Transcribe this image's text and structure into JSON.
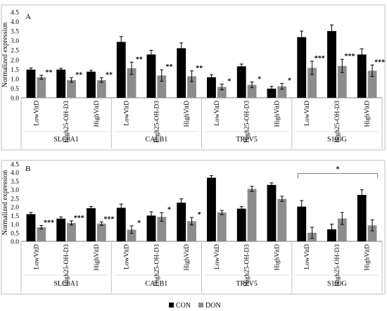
{
  "legend": {
    "entries": [
      {
        "name": "CON",
        "color": "#000000"
      },
      {
        "name": "DON",
        "color": "#8c8c8c"
      }
    ],
    "position": "bottom-center"
  },
  "chart_data": [
    {
      "type": "bar",
      "panel_label": "A",
      "ylabel": "Normalized expression",
      "ylim": [
        0,
        4.5
      ],
      "yticks": [
        "0.0",
        "0.5",
        "1.0",
        "1.5",
        "2.0",
        "2.5",
        "3.0",
        "3.5",
        "4.0",
        "4.5"
      ],
      "grid": false,
      "groups": [
        "SLC8A1",
        "CALB1",
        "TRPV5",
        "S100G"
      ],
      "categories": [
        "LowVitD",
        "High25-OH-D3",
        "HighVitD"
      ],
      "series": [
        {
          "name": "CON",
          "values": [
            [
              1.48,
              1.48,
              1.37
            ],
            [
              2.93,
              2.27,
              2.6
            ],
            [
              1.08,
              1.65,
              0.48
            ],
            [
              3.18,
              3.5,
              2.27
            ]
          ],
          "errors": [
            [
              0.08,
              0.07,
              0.07
            ],
            [
              0.28,
              0.22,
              0.28
            ],
            [
              0.13,
              0.12,
              0.12
            ],
            [
              0.32,
              0.32,
              0.3
            ]
          ]
        },
        {
          "name": "DON",
          "values": [
            [
              1.08,
              0.93,
              0.93
            ],
            [
              1.55,
              1.17,
              1.13
            ],
            [
              0.57,
              0.68,
              0.6
            ],
            [
              1.57,
              1.67,
              1.42
            ]
          ],
          "errors": [
            [
              0.1,
              0.12,
              0.12
            ],
            [
              0.32,
              0.3,
              0.28
            ],
            [
              0.15,
              0.15,
              0.15
            ],
            [
              0.35,
              0.35,
              0.3
            ]
          ]
        }
      ],
      "annotations": [
        [
          "**",
          "**",
          "**"
        ],
        [
          "**",
          "**",
          "**"
        ],
        [
          "*",
          "*",
          "*"
        ],
        [
          "***",
          "***",
          "***"
        ]
      ]
    },
    {
      "type": "bar",
      "panel_label": "B",
      "ylabel": "Normalized expression",
      "ylim": [
        0,
        4.5
      ],
      "yticks": [
        "0.0",
        "0.5",
        "1.0",
        "1.5",
        "2.0",
        "2.5",
        "3.0",
        "3.5",
        "4.0",
        "4.5"
      ],
      "grid": false,
      "groups": [
        "SLC8A1",
        "CALB1",
        "TRPV5",
        "S100G"
      ],
      "categories": [
        "LowVitD",
        "High25-OH-D3",
        "HighVitD"
      ],
      "series": [
        {
          "name": "CON",
          "values": [
            [
              1.58,
              1.32,
              1.93
            ],
            [
              1.95,
              1.5,
              2.25
            ],
            [
              3.7,
              1.9,
              3.28
            ],
            [
              2.02,
              0.7,
              2.7
            ]
          ],
          "errors": [
            [
              0.1,
              0.1,
              0.1
            ],
            [
              0.22,
              0.22,
              0.22
            ],
            [
              0.12,
              0.12,
              0.12
            ],
            [
              0.35,
              0.3,
              0.3
            ]
          ]
        },
        {
          "name": "DON",
          "values": [
            [
              0.82,
              1.07,
              1.03
            ],
            [
              0.68,
              1.42,
              1.17
            ],
            [
              1.68,
              3.05,
              2.47
            ],
            [
              0.5,
              1.33,
              0.93
            ]
          ],
          "errors": [
            [
              0.1,
              0.12,
              0.1
            ],
            [
              0.22,
              0.25,
              0.22
            ],
            [
              0.12,
              0.15,
              0.15
            ],
            [
              0.32,
              0.35,
              0.32
            ]
          ]
        }
      ],
      "annotations": [
        [
          "***",
          "***",
          "***"
        ],
        [
          "*",
          "*",
          "*"
        ],
        [
          "",
          "",
          ""
        ],
        [
          "",
          "",
          ""
        ]
      ],
      "bracket": {
        "group": "S100G",
        "label": "*"
      }
    }
  ]
}
